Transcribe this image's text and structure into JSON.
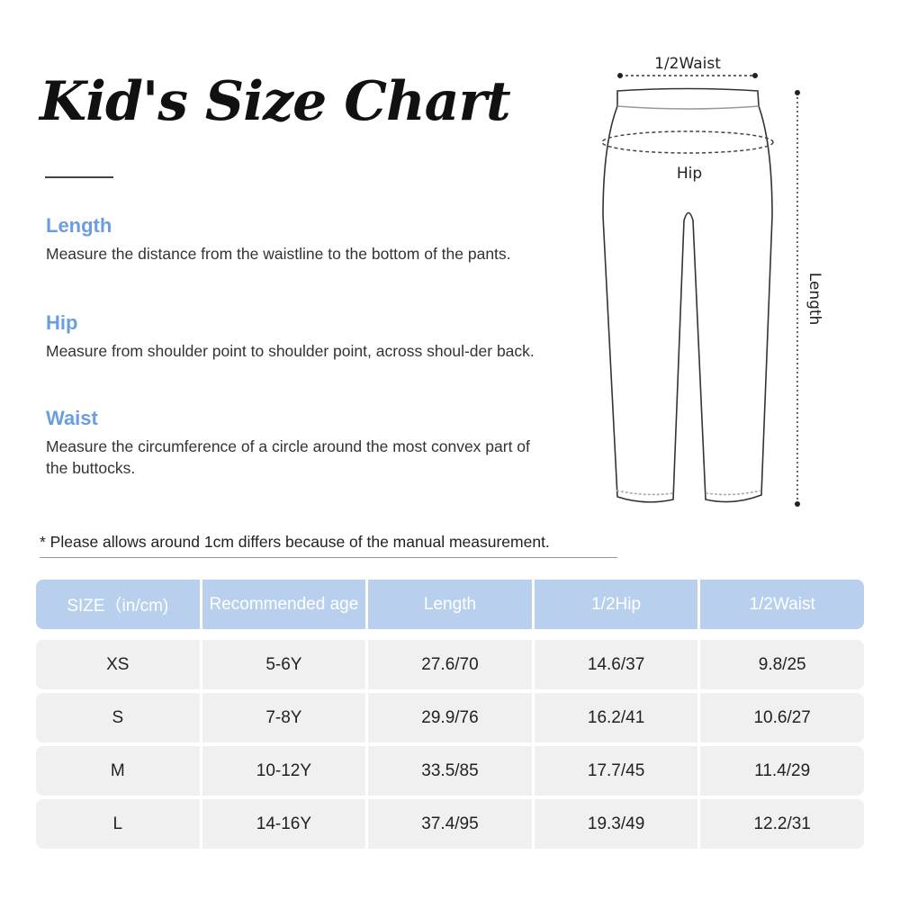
{
  "title": "Kid's Size Chart",
  "sections": [
    {
      "heading": "Length",
      "text": "Measure the distance from the waistline to the bottom of the pants."
    },
    {
      "heading": "Hip",
      "text": "Measure from shoulder point to shoulder point, across shoul-der back."
    },
    {
      "heading": "Waist",
      "text": "Measure the circumference of a circle around the most convex part of the buttocks."
    }
  ],
  "diagram": {
    "waist_label": "1/2Waist",
    "hip_label": "Hip",
    "length_label": "Length"
  },
  "note": "* Please allows around 1cm differs because of the manual measurement.",
  "table": {
    "headers": [
      "SIZE（in/cm)",
      "Recommended age",
      "Length",
      "1/2Hip",
      "1/2Waist"
    ],
    "rows": [
      [
        "XS",
        "5-6Y",
        "27.6/70",
        "14.6/37",
        "9.8/25"
      ],
      [
        "S",
        "7-8Y",
        "29.9/76",
        "16.2/41",
        "10.6/27"
      ],
      [
        "M",
        "10-12Y",
        "33.5/85",
        "17.7/45",
        "11.4/29"
      ],
      [
        "L",
        "14-16Y",
        "37.4/95",
        "19.3/49",
        "12.2/31"
      ]
    ]
  },
  "colors": {
    "accent": "#6a9ee0",
    "header_bg": "#b8d0ee",
    "row_bg": "#f0f0f0"
  }
}
